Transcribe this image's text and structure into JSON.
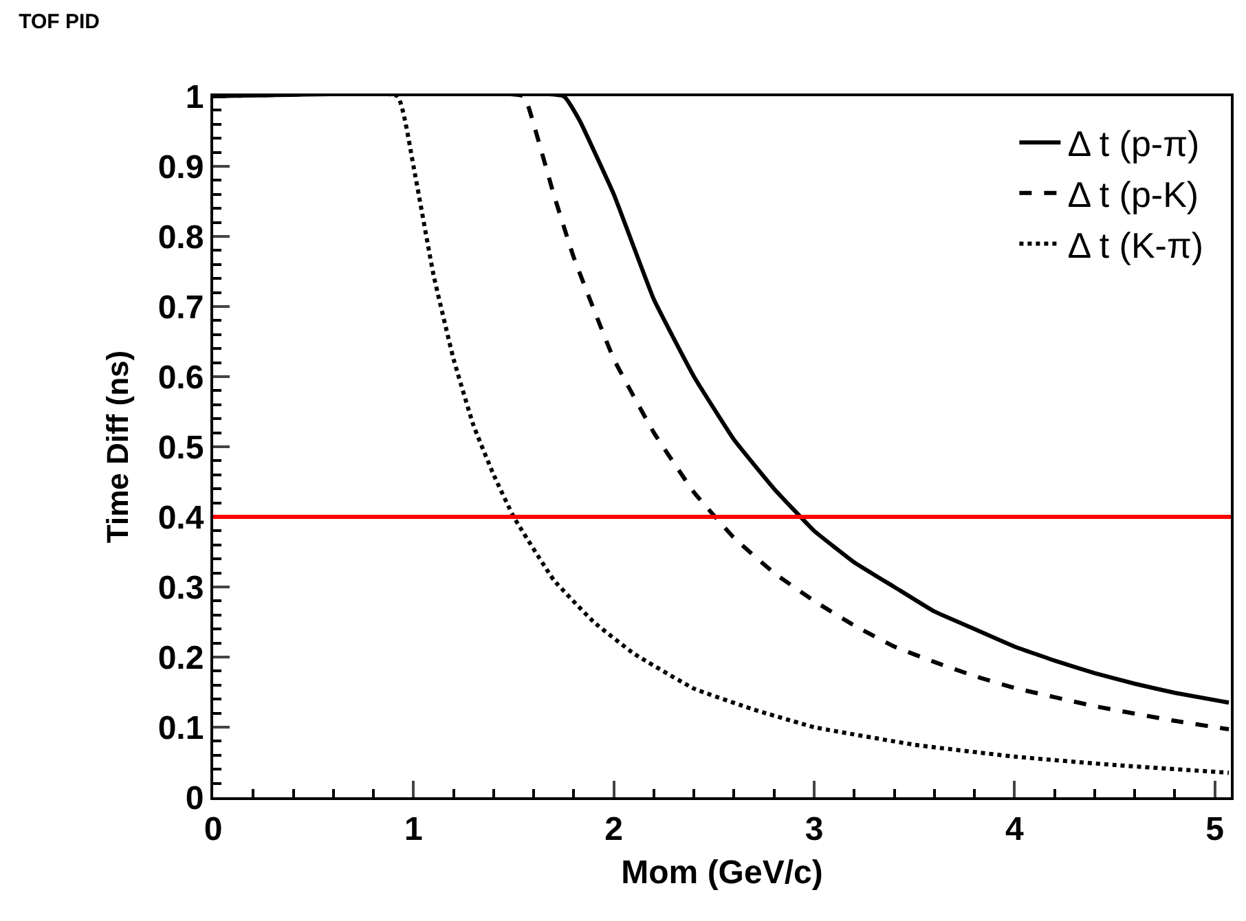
{
  "chart_data": {
    "type": "line",
    "title": "TOF PID",
    "xlabel": "Mom (GeV/c)",
    "ylabel": "Time Diff (ns)",
    "xlim": [
      0,
      5.08
    ],
    "xticks": [
      0,
      1,
      2,
      3,
      4,
      5
    ],
    "ylim": [
      0,
      1
    ],
    "yticks": [
      0,
      0.1,
      0.2,
      0.3,
      0.4,
      0.5,
      0.6,
      0.7,
      0.8,
      0.9,
      1
    ],
    "legend": "top right",
    "marker": "none",
    "series": [
      {
        "name": "Δ t (p-π)",
        "color": "#000000",
        "line_style": "solid",
        "x": [
          0,
          1.75,
          1.83,
          2.0,
          2.2,
          2.4,
          2.6,
          2.8,
          3.0,
          3.2,
          3.4,
          3.6,
          3.8,
          4.0,
          4.2,
          4.4,
          4.6,
          4.8,
          5.07
        ],
        "values": [
          1,
          1,
          0.965,
          0.86,
          0.71,
          0.6,
          0.51,
          0.44,
          0.38,
          0.335,
          0.3,
          0.265,
          0.24,
          0.215,
          0.195,
          0.177,
          0.162,
          0.149,
          0.135
        ]
      },
      {
        "name": "Δ t (p-K)",
        "color": "#000000",
        "line_style": "dashed",
        "x": [
          0,
          1.55,
          1.6,
          1.7,
          1.8,
          2.0,
          2.2,
          2.4,
          2.6,
          2.8,
          3.0,
          3.2,
          3.4,
          3.6,
          3.8,
          4.0,
          4.4,
          4.8,
          5.07
        ],
        "values": [
          1,
          1,
          0.96,
          0.86,
          0.77,
          0.625,
          0.52,
          0.435,
          0.37,
          0.32,
          0.28,
          0.245,
          0.215,
          0.193,
          0.173,
          0.156,
          0.13,
          0.109,
          0.097
        ]
      },
      {
        "name": "Δ t (K-π)",
        "color": "#000000",
        "line_style": "dotted",
        "x": [
          0,
          0.92,
          1.0,
          1.1,
          1.2,
          1.3,
          1.4,
          1.5,
          1.7,
          1.9,
          2.1,
          2.4,
          2.7,
          3.0,
          3.5,
          4.0,
          4.5,
          5.07
        ],
        "values": [
          1,
          1,
          0.9,
          0.745,
          0.625,
          0.53,
          0.46,
          0.4,
          0.31,
          0.25,
          0.205,
          0.155,
          0.125,
          0.1,
          0.075,
          0.058,
          0.046,
          0.035
        ]
      }
    ],
    "ref_lines": [
      {
        "axis": "y",
        "value": 0.4,
        "color": "#ff0000",
        "line_style": "solid"
      }
    ]
  }
}
